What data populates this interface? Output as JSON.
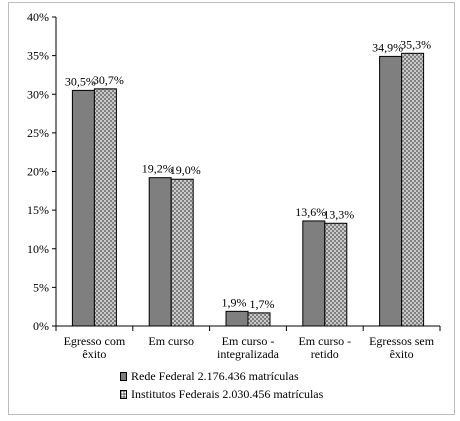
{
  "chart_data": {
    "type": "bar",
    "categories": [
      [
        "Egresso com",
        "êxito"
      ],
      [
        "Em curso"
      ],
      [
        "Em curso -",
        "integralizada"
      ],
      [
        "Em curso -",
        "retido"
      ],
      [
        "Egressos sem",
        "êxito"
      ]
    ],
    "series": [
      {
        "name": "Rede Federal  2.176.436 matrículas",
        "values": [
          30.5,
          19.2,
          1.9,
          13.6,
          34.9
        ],
        "labels": [
          "30,5%",
          "19,2%",
          "1,9%",
          "13,6%",
          "34,9%"
        ],
        "color": "#7f7f7f",
        "pattern": "solid"
      },
      {
        "name": "Institutos Federais  2.030.456 matrículas",
        "values": [
          30.7,
          19.0,
          1.7,
          13.3,
          35.3
        ],
        "labels": [
          "30,7%",
          "19,0%",
          "1,7%",
          "13,3%",
          "35,3%"
        ],
        "color": "#7f7f7f",
        "pattern": "dotted"
      }
    ],
    "yticks": [
      "0%",
      "5%",
      "10%",
      "15%",
      "20%",
      "25%",
      "30%",
      "35%",
      "40%"
    ],
    "ylim": [
      0,
      40
    ],
    "grid": false,
    "legend_position": "bottom",
    "title": "",
    "xlabel": "",
    "ylabel": ""
  }
}
